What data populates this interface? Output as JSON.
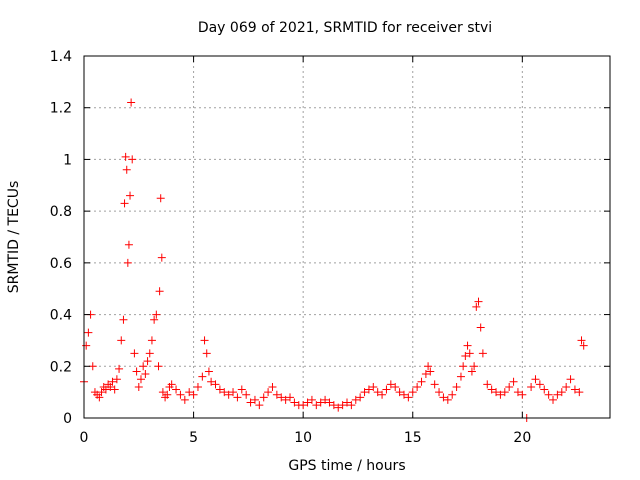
{
  "chart_data": {
    "type": "scatter",
    "title": "Day 069 of 2021, SRMTID for receiver stvi",
    "xlabel": "GPS time / hours",
    "ylabel": "SRMTID / TECUs",
    "xlim": [
      0,
      24
    ],
    "ylim": [
      0,
      1.4
    ],
    "xticks": [
      0,
      5,
      10,
      15,
      20
    ],
    "xtick_labels": [
      "0",
      "5",
      "10",
      "15",
      "20"
    ],
    "yticks": [
      0,
      0.2,
      0.4,
      0.6,
      0.8,
      1.0,
      1.2,
      1.4
    ],
    "ytick_labels": [
      "0",
      "0.2",
      "0.4",
      "0.6",
      "0.8",
      "1",
      "1.2",
      "1.4"
    ],
    "grid": true,
    "marker": "+",
    "series": [
      {
        "name": "SRMTID",
        "color": "#ff0000",
        "x": [
          0.0,
          0.1,
          0.2,
          0.3,
          0.4,
          0.5,
          0.6,
          0.7,
          0.8,
          0.9,
          1.0,
          1.1,
          1.2,
          1.3,
          1.4,
          1.5,
          1.6,
          1.7,
          1.8,
          1.85,
          1.9,
          1.95,
          2.0,
          2.05,
          2.1,
          2.15,
          2.2,
          2.3,
          2.4,
          2.5,
          2.6,
          2.7,
          2.8,
          2.9,
          3.0,
          3.1,
          3.2,
          3.3,
          3.4,
          3.45,
          3.5,
          3.55,
          3.6,
          3.7,
          3.8,
          3.9,
          4.0,
          4.2,
          4.4,
          4.6,
          4.8,
          5.0,
          5.2,
          5.4,
          5.5,
          5.6,
          5.7,
          5.8,
          6.0,
          6.2,
          6.4,
          6.6,
          6.8,
          7.0,
          7.2,
          7.4,
          7.6,
          7.8,
          8.0,
          8.2,
          8.4,
          8.6,
          8.8,
          9.0,
          9.2,
          9.4,
          9.6,
          9.8,
          10.0,
          10.2,
          10.4,
          10.6,
          10.8,
          11.0,
          11.2,
          11.4,
          11.6,
          11.8,
          12.0,
          12.2,
          12.4,
          12.6,
          12.8,
          13.0,
          13.2,
          13.4,
          13.6,
          13.8,
          14.0,
          14.2,
          14.4,
          14.6,
          14.8,
          15.0,
          15.2,
          15.4,
          15.6,
          15.7,
          15.8,
          16.0,
          16.2,
          16.4,
          16.6,
          16.8,
          17.0,
          17.2,
          17.3,
          17.4,
          17.5,
          17.6,
          17.7,
          17.8,
          17.9,
          18.0,
          18.1,
          18.2,
          18.4,
          18.6,
          18.8,
          19.0,
          19.2,
          19.4,
          19.6,
          19.8,
          20.0,
          20.2,
          20.4,
          20.6,
          20.8,
          21.0,
          21.2,
          21.4,
          21.6,
          21.8,
          22.0,
          22.2,
          22.4,
          22.6,
          22.7,
          22.8
        ],
        "y": [
          0.14,
          0.28,
          0.33,
          0.4,
          0.2,
          0.1,
          0.09,
          0.08,
          0.1,
          0.12,
          0.11,
          0.13,
          0.12,
          0.14,
          0.11,
          0.15,
          0.19,
          0.3,
          0.38,
          0.83,
          1.01,
          0.96,
          0.6,
          0.67,
          0.86,
          1.22,
          1.0,
          0.25,
          0.18,
          0.12,
          0.15,
          0.2,
          0.17,
          0.22,
          0.25,
          0.3,
          0.38,
          0.4,
          0.2,
          0.49,
          0.85,
          0.62,
          0.1,
          0.08,
          0.09,
          0.12,
          0.13,
          0.11,
          0.09,
          0.07,
          0.1,
          0.09,
          0.12,
          0.16,
          0.3,
          0.25,
          0.18,
          0.14,
          0.13,
          0.11,
          0.1,
          0.09,
          0.1,
          0.08,
          0.11,
          0.09,
          0.06,
          0.07,
          0.05,
          0.08,
          0.1,
          0.12,
          0.09,
          0.08,
          0.07,
          0.08,
          0.06,
          0.05,
          0.05,
          0.06,
          0.07,
          0.05,
          0.06,
          0.07,
          0.06,
          0.05,
          0.04,
          0.05,
          0.06,
          0.05,
          0.07,
          0.08,
          0.1,
          0.11,
          0.12,
          0.1,
          0.09,
          0.11,
          0.13,
          0.12,
          0.1,
          0.09,
          0.08,
          0.1,
          0.12,
          0.14,
          0.17,
          0.2,
          0.18,
          0.13,
          0.1,
          0.08,
          0.07,
          0.09,
          0.12,
          0.16,
          0.2,
          0.24,
          0.28,
          0.25,
          0.18,
          0.2,
          0.43,
          0.45,
          0.35,
          0.25,
          0.13,
          0.11,
          0.1,
          0.09,
          0.1,
          0.12,
          0.14,
          0.1,
          0.09,
          0.0,
          0.12,
          0.15,
          0.13,
          0.11,
          0.09,
          0.07,
          0.09,
          0.1,
          0.12,
          0.15,
          0.11,
          0.1,
          0.3,
          0.28
        ]
      }
    ]
  }
}
